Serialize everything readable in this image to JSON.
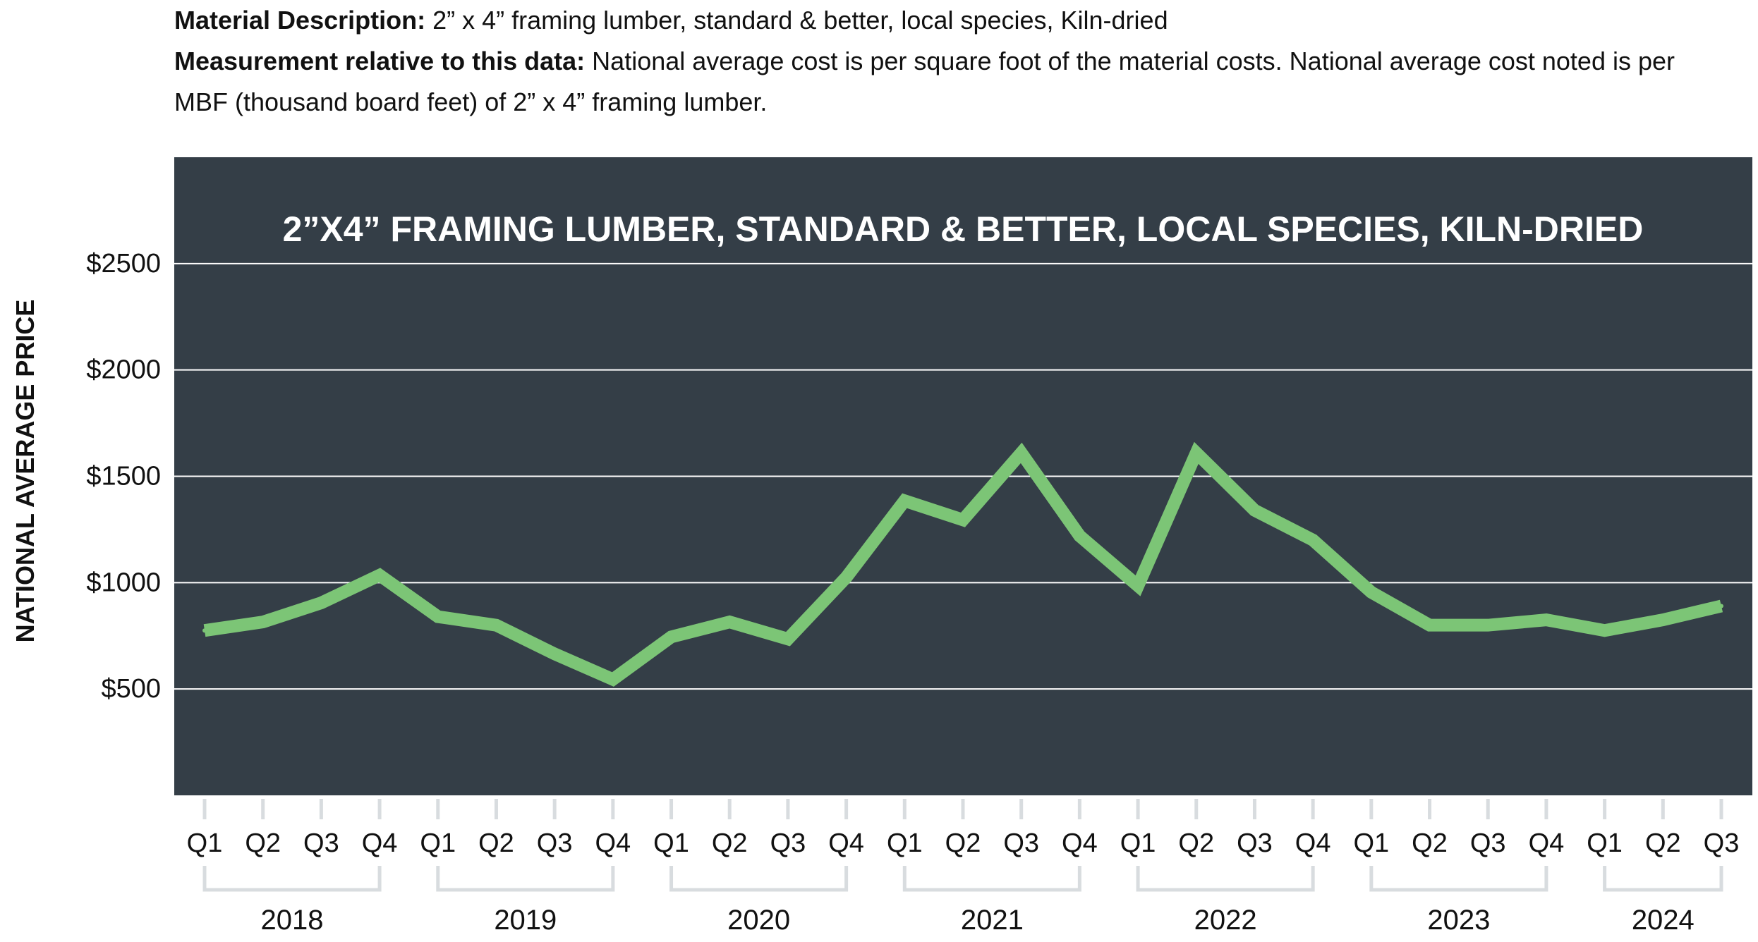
{
  "description": {
    "material_label": "Material Description:",
    "material_text": " 2” x 4” framing lumber, standard & better, local species, Kiln-dried",
    "measurement_label": "Measurement relative to this data:",
    "measurement_text": " National average cost is per square foot of the material costs. National average cost noted is per MBF (thousand board feet) of 2” x 4” framing lumber."
  },
  "colors": {
    "panel": "#343e47",
    "line": "#7cc576",
    "grid": "#ffffff",
    "bracket": "#d8dcdf"
  },
  "chart_data": {
    "type": "line",
    "title": "2”X4” FRAMING LUMBER, STANDARD & BETTER, LOCAL SPECIES, KILN-DRIED",
    "xlabel": "",
    "ylabel": "NATIONAL AVERAGE PRICE",
    "ylim": [
      0,
      3000
    ],
    "yticks": [
      500,
      1000,
      1500,
      2000,
      2500
    ],
    "ytick_labels": [
      "$500",
      "$1000",
      "$1500",
      "$2000",
      "$2500"
    ],
    "grid": true,
    "categories": [
      "Q1",
      "Q2",
      "Q3",
      "Q4",
      "Q1",
      "Q2",
      "Q3",
      "Q4",
      "Q1",
      "Q2",
      "Q3",
      "Q4",
      "Q1",
      "Q2",
      "Q3",
      "Q4",
      "Q1",
      "Q2",
      "Q3",
      "Q4",
      "Q1",
      "Q2",
      "Q3",
      "Q4",
      "Q1",
      "Q2",
      "Q3"
    ],
    "years": [
      {
        "label": "2018",
        "quarters": 4
      },
      {
        "label": "2019",
        "quarters": 4
      },
      {
        "label": "2020",
        "quarters": 4
      },
      {
        "label": "2021",
        "quarters": 4
      },
      {
        "label": "2022",
        "quarters": 4
      },
      {
        "label": "2023",
        "quarters": 4
      },
      {
        "label": "2024",
        "quarters": 3
      }
    ],
    "series": [
      {
        "values": [
          775,
          815,
          905,
          1035,
          840,
          800,
          665,
          545,
          745,
          815,
          735,
          1025,
          1385,
          1295,
          1610,
          1220,
          985,
          1610,
          1340,
          1200,
          955,
          800,
          800,
          825,
          775,
          825,
          890
        ]
      }
    ]
  }
}
